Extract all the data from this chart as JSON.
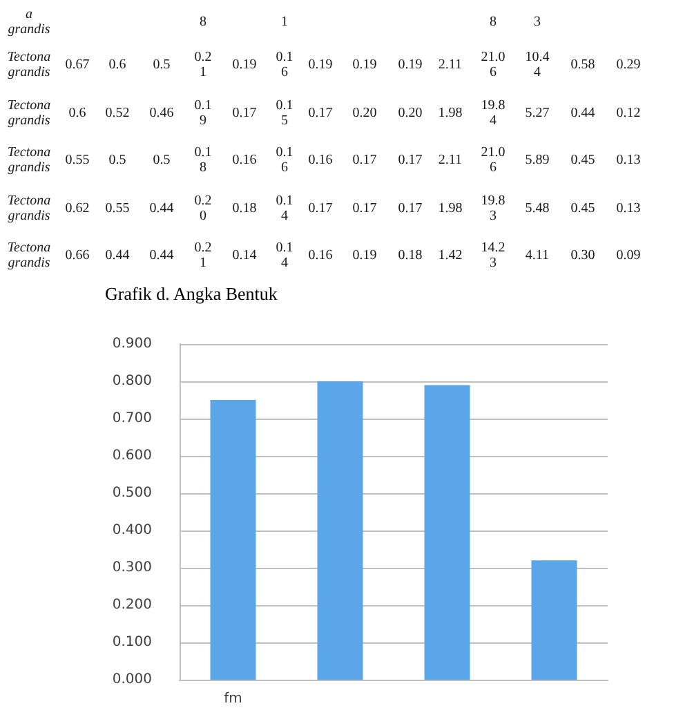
{
  "chart_data": [
    {
      "type": "other",
      "annotations": [
        "a grandis\t\t\t\t8\t\t1\t\t\t\t\t8\t3\t\t",
        "Tectona grandis\t0.67\t0.6\t0.5\t0.21\t0.19\t0.16\t0.19\t0.19\t0.19\t2.11\t21.06\t10.44\t0.58\t0.29",
        "Tectona grandis\t0.6\t0.52\t0.46\t0.19\t0.17\t0.15\t0.17\t0.20\t0.20\t1.98\t19.84\t5.27\t0.44\t0.12",
        "Tectona grandis\t0.55\t0.5\t0.5\t0.18\t0.16\t0.16\t0.16\t0.17\t0.17\t2.11\t21.06\t5.89\t0.45\t0.13",
        "Tectona grandis\t0.62\t0.55\t0.44\t0.20\t0.18\t0.14\t0.17\t0.17\t0.17\t1.98\t19.83\t5.48\t0.45\t0.13",
        "Tectona grandis\t0.66\t0.44\t0.44\t0.21\t0.14\t0.14\t0.16\t0.19\t0.18\t1.42\t14.23\t4.11\t0.30\t0.09"
      ]
    },
    {
      "type": "bar",
      "title": "Grafik d. Angka Bentuk",
      "categories": [
        "fm",
        null,
        null,
        null
      ],
      "values": [
        0.75,
        0.8,
        0.79,
        0.32
      ],
      "color": "#5ba5e9",
      "ylim": [
        0,
        0.9
      ],
      "yticks": [
        {
          "value": 0,
          "label": "0.000"
        },
        {
          "value": 0.1,
          "label": "0.100"
        },
        {
          "value": 0.2,
          "label": "0.200"
        },
        {
          "value": 0.3,
          "label": "0.300"
        },
        {
          "value": 0.4,
          "label": "0.400"
        },
        {
          "value": 0.5,
          "label": "0.500"
        },
        {
          "value": 0.6,
          "label": "0.600"
        },
        {
          "value": 0.7,
          "label": "0.700"
        },
        {
          "value": 0.8,
          "label": "0.800"
        },
        {
          "value": 0.9,
          "label": "0.900"
        }
      ],
      "grid": "y"
    }
  ]
}
